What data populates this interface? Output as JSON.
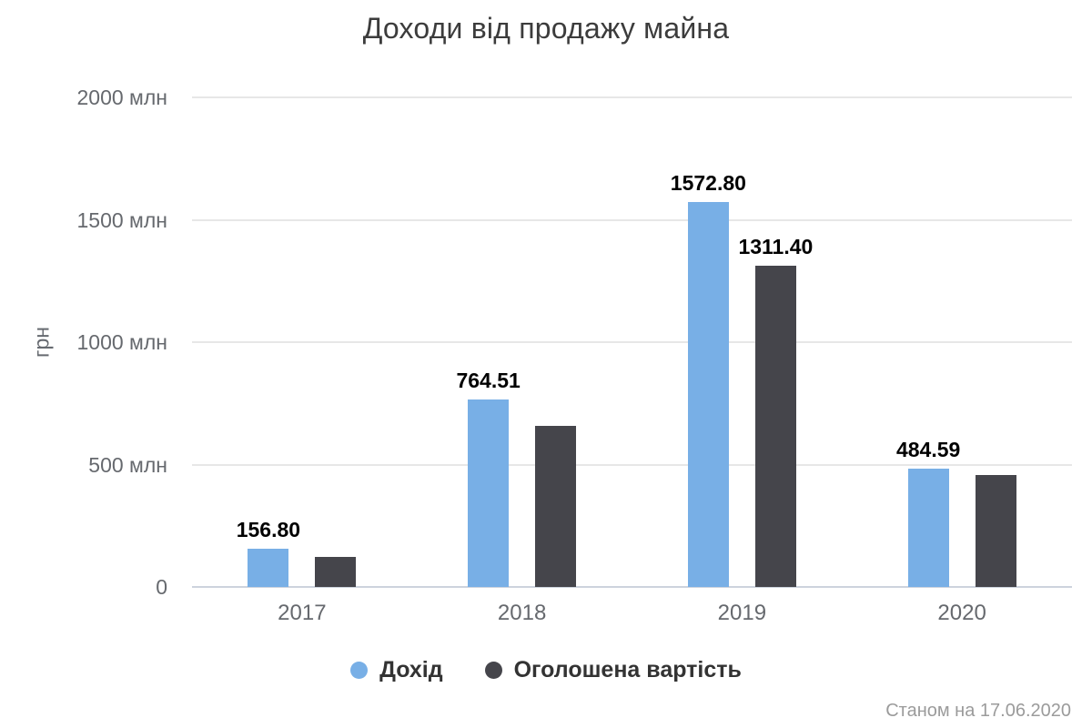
{
  "caption": "Станом на 17.06.2020",
  "colors": {
    "series_income": "#78AFE6",
    "series_declared": "#45454B",
    "grid": "#E7E7E7",
    "axis_line": "#CDD3DD",
    "tick_text": "#66696E",
    "title_text": "#3C3C3C",
    "data_label_text": "#000000",
    "legend_text": "#333333",
    "caption_text": "#9B9B9B",
    "background": "#FFFFFF"
  },
  "chart_data": {
    "type": "bar",
    "title": "Доходи від продажу майна",
    "xlabel": "",
    "ylabel": "грн",
    "categories": [
      "2017",
      "2018",
      "2019",
      "2020"
    ],
    "series": [
      {
        "name": "Дохід",
        "color": "#78AFE6",
        "values": [
          156.8,
          764.51,
          1572.8,
          484.59
        ],
        "data_labels": [
          "156.80",
          "764.51",
          "1572.80",
          "484.59"
        ]
      },
      {
        "name": "Оголошена вартість",
        "color": "#45454B",
        "values": [
          123,
          658,
          1311.4,
          457
        ],
        "data_labels": [
          null,
          null,
          "1311.40",
          null
        ]
      }
    ],
    "ylim": [
      0,
      2000
    ],
    "yticks": [
      {
        "value": 0,
        "label": "0"
      },
      {
        "value": 500,
        "label": "500 млн"
      },
      {
        "value": 1000,
        "label": "1000 млн"
      },
      {
        "value": 1500,
        "label": "1500 млн"
      },
      {
        "value": 2000,
        "label": "2000 млн"
      }
    ],
    "grid": true,
    "legend_position": "bottom",
    "caption": "Станом на 17.06.2020"
  }
}
